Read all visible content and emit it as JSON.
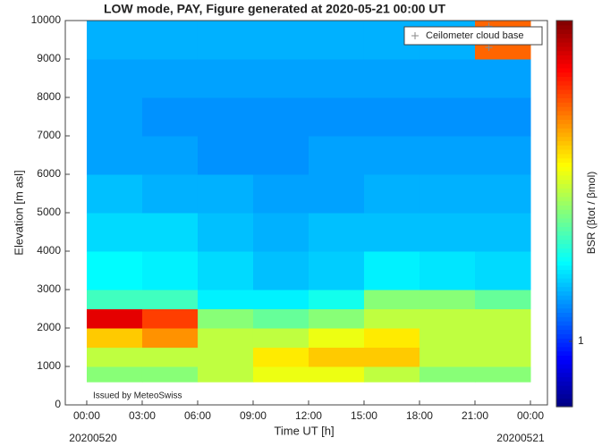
{
  "chart_data": {
    "type": "heatmap",
    "title": "LOW mode, PAY, Figure generated at 2020-05-21 00:00 UT",
    "xlabel": "Time UT [h]",
    "ylabel": "Elevation [m asl]",
    "colorbar_label": "BSR (βtot / βmol)",
    "annotations": [
      "Issued by MeteoSwiss",
      "20200520",
      "20200521"
    ],
    "x_bins": [
      0,
      3,
      6,
      9,
      12,
      15,
      18,
      21,
      24
    ],
    "y_bins": [
      600,
      1000,
      1500,
      2000,
      2500,
      3000,
      4000,
      5000,
      6000,
      7000,
      8000,
      9000,
      10000
    ],
    "z": [
      [
        4,
        4,
        5,
        6,
        6,
        5,
        4,
        4
      ],
      [
        5,
        5,
        5,
        7,
        8,
        8,
        5,
        5
      ],
      [
        8,
        10,
        5,
        5,
        6,
        7,
        5,
        5
      ],
      [
        20,
        14,
        4,
        3.5,
        4,
        5,
        5,
        5
      ],
      [
        3,
        3,
        2.2,
        2.2,
        2.5,
        4,
        4,
        3.5
      ],
      [
        2.3,
        2.2,
        2,
        1.8,
        1.9,
        2.2,
        2.1,
        2
      ],
      [
        2,
        2,
        1.8,
        1.7,
        1.8,
        1.8,
        1.8,
        1.8
      ],
      [
        1.8,
        1.7,
        1.7,
        1.6,
        1.6,
        1.7,
        1.7,
        1.7
      ],
      [
        1.6,
        1.6,
        1.5,
        1.5,
        1.6,
        1.6,
        1.6,
        1.6
      ],
      [
        1.6,
        1.5,
        1.5,
        1.5,
        1.5,
        1.5,
        1.5,
        1.5
      ],
      [
        1.6,
        1.6,
        1.6,
        1.6,
        1.6,
        1.6,
        1.6,
        1.6
      ],
      [
        1.7,
        1.7,
        1.7,
        1.7,
        1.7,
        1.7,
        1.7,
        12
      ]
    ],
    "colormap": "jet",
    "color_log": true,
    "clim": [
      0.5,
      30
    ],
    "cticks": [
      1
    ],
    "series": [
      {
        "name": "Ceilometer cloud base",
        "color": "#8a8a8a",
        "x": [
          21.75,
          21.75
        ],
        "y": [
          9300,
          9850
        ]
      }
    ],
    "xlim": [
      -1.16,
      24.92
    ],
    "ylim": [
      0,
      10000
    ],
    "xticks": [
      {
        "value": 0,
        "label": "00:00"
      },
      {
        "value": 3,
        "label": "03:00"
      },
      {
        "value": 6,
        "label": "06:00"
      },
      {
        "value": 9,
        "label": "09:00"
      },
      {
        "value": 12,
        "label": "12:00"
      },
      {
        "value": 15,
        "label": "15:00"
      },
      {
        "value": 18,
        "label": "18:00"
      },
      {
        "value": 21,
        "label": "21:00"
      },
      {
        "value": 24,
        "label": "00:00"
      }
    ],
    "yticks": [
      0,
      1000,
      2000,
      3000,
      4000,
      5000,
      6000,
      7000,
      8000,
      9000,
      10000
    ],
    "legend": "upper right"
  }
}
